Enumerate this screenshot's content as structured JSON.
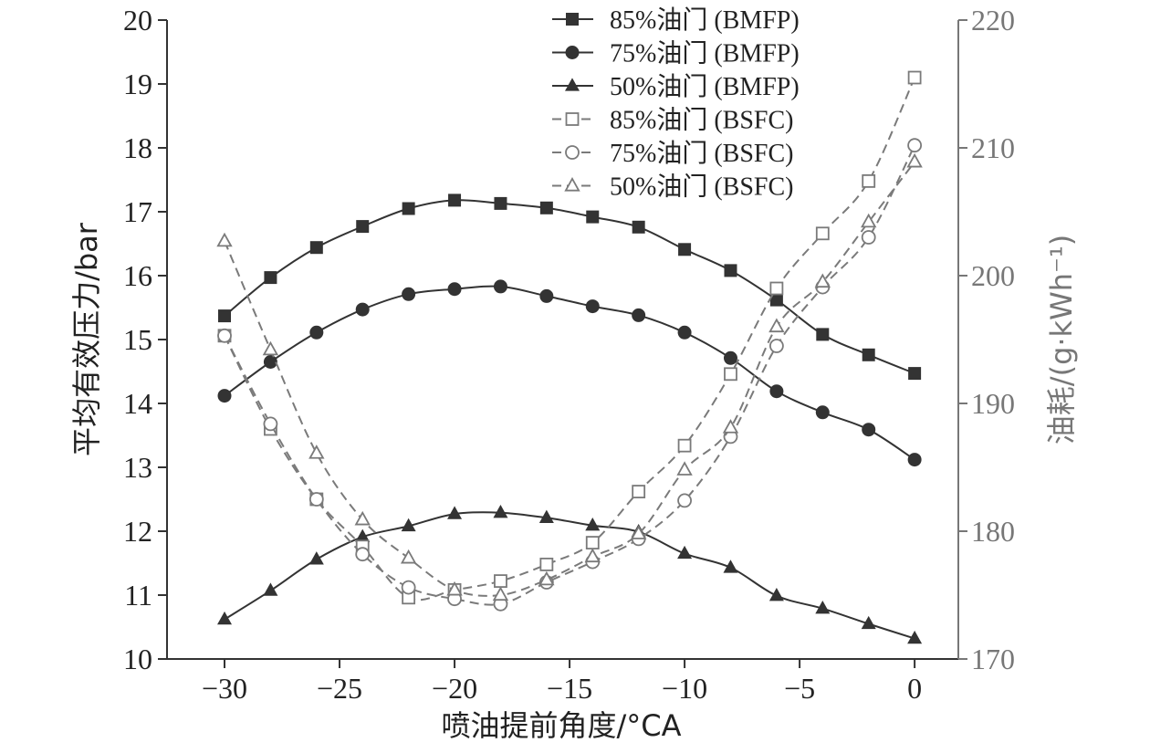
{
  "chart_data": {
    "type": "line",
    "title": "",
    "xlabel": "喷油提前角度/°CA",
    "ylabel_left": "平均有效压力/bar",
    "ylabel_right": "油耗/(g·kWh⁻¹)",
    "x": [
      -30,
      -28,
      -26,
      -24,
      -22,
      -20,
      -18,
      -16,
      -14,
      -12,
      -10,
      -8,
      -6,
      -4,
      -2,
      0
    ],
    "xlim": [
      -32.5,
      1.9
    ],
    "xticks": [
      "−30",
      "−25",
      "−20",
      "−15",
      "−10",
      "−5",
      "0"
    ],
    "xtick_values": [
      -30,
      -25,
      -20,
      -15,
      -10,
      -5,
      0
    ],
    "ylim_left": [
      10,
      20
    ],
    "yticks_left": [
      "10",
      "11",
      "12",
      "13",
      "14",
      "15",
      "16",
      "17",
      "18",
      "19",
      "20"
    ],
    "ylim_right": [
      170,
      220
    ],
    "yticks_right": [
      "170",
      "180",
      "190",
      "200",
      "210",
      "220"
    ],
    "legend_position": "top-right",
    "colors": {
      "bmfp": "#333333",
      "bsfc": "#7a7a7a",
      "right_axis": "#777777"
    },
    "series": [
      {
        "name": "85%油门 (BMFP)",
        "axis": "left",
        "marker": "square",
        "filled": true,
        "dashed": false,
        "values": [
          15.37,
          15.97,
          16.44,
          16.77,
          17.05,
          17.18,
          17.13,
          17.06,
          16.92,
          16.76,
          16.41,
          16.08,
          15.62,
          15.08,
          14.76,
          14.47
        ]
      },
      {
        "name": "75%油门 (BMFP)",
        "axis": "left",
        "marker": "circle",
        "filled": true,
        "dashed": false,
        "values": [
          14.12,
          14.65,
          15.11,
          15.47,
          15.71,
          15.79,
          15.83,
          15.68,
          15.52,
          15.38,
          15.11,
          14.71,
          14.19,
          13.86,
          13.59,
          13.12
        ]
      },
      {
        "name": "50%油门 (BMFP)",
        "axis": "left",
        "marker": "triangle",
        "filled": true,
        "dashed": false,
        "values": [
          10.62,
          11.07,
          11.56,
          11.91,
          12.08,
          12.27,
          12.29,
          12.21,
          12.09,
          11.99,
          11.65,
          11.43,
          10.99,
          10.79,
          10.55,
          10.32
        ]
      },
      {
        "name": "85%油门 (BSFC)",
        "axis": "right",
        "marker": "square",
        "filled": false,
        "dashed": true,
        "values": [
          195.3,
          188.0,
          182.5,
          178.8,
          174.8,
          175.4,
          176.1,
          177.4,
          179.1,
          183.1,
          186.7,
          192.3,
          199.0,
          203.3,
          207.4,
          215.5
        ]
      },
      {
        "name": "75%油门 (BSFC)",
        "axis": "right",
        "marker": "circle",
        "filled": false,
        "dashed": true,
        "values": [
          195.3,
          188.4,
          182.5,
          178.2,
          175.6,
          174.7,
          174.3,
          176.0,
          177.6,
          179.4,
          182.4,
          187.4,
          194.5,
          199.1,
          203.0,
          210.2
        ]
      },
      {
        "name": "50%油门 (BSFC)",
        "axis": "right",
        "marker": "triangle",
        "filled": false,
        "dashed": true,
        "values": [
          202.7,
          194.2,
          186.1,
          180.9,
          177.9,
          175.4,
          175.0,
          176.2,
          178.0,
          179.8,
          184.8,
          188.1,
          196.0,
          199.5,
          204.2,
          208.9
        ]
      }
    ]
  }
}
